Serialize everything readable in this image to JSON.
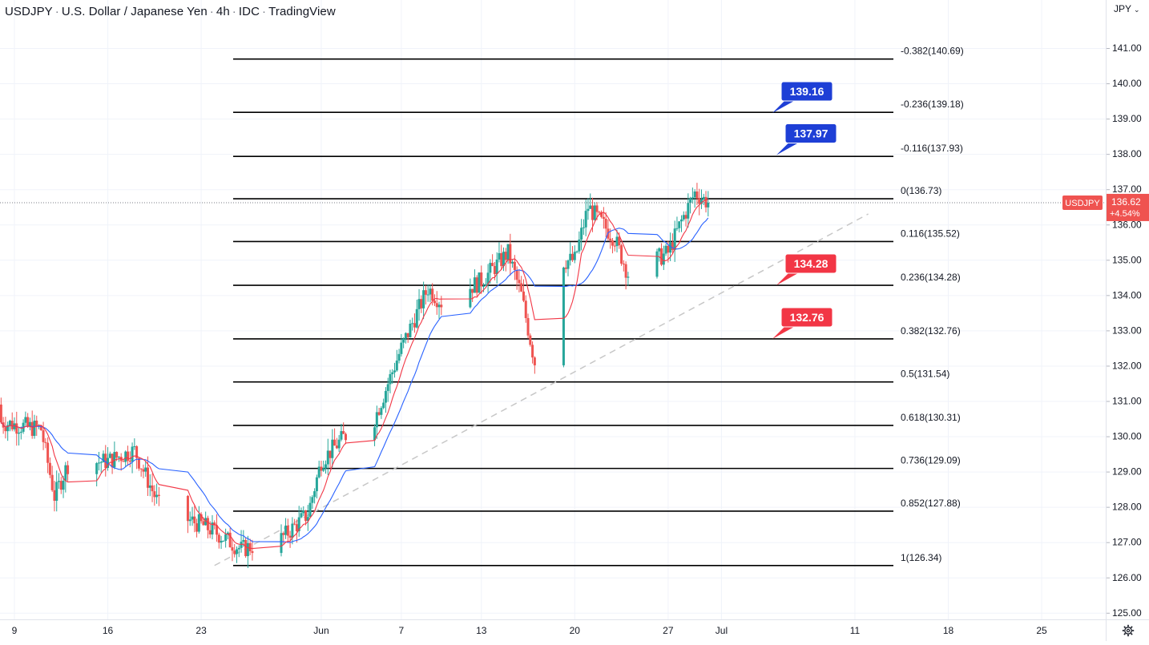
{
  "header": {
    "symbol": "USDJPY",
    "description": "U.S. Dollar / Japanese Yen",
    "interval": "4h",
    "source": "IDC",
    "platform": "TradingView",
    "currency_label": "JPY"
  },
  "price_axis": {
    "ticks": [
      "141.00",
      "140.00",
      "139.00",
      "138.00",
      "137.00",
      "136.00",
      "135.00",
      "134.00",
      "133.00",
      "132.00",
      "131.00",
      "130.00",
      "129.00",
      "128.00",
      "127.00",
      "126.00",
      "125.00"
    ],
    "symbol_tag": "USDJPY",
    "last_price": "136.62",
    "change_pct": "+4.54%"
  },
  "time_axis": {
    "labels": [
      "9",
      "16",
      "23",
      "Jun",
      "7",
      "13",
      "20",
      "27",
      "Jul",
      "11",
      "18",
      "25"
    ]
  },
  "colors": {
    "up": "#26a69a",
    "down": "#ef5350",
    "ma_fast": "#f23645",
    "ma_slow": "#2962ff",
    "level_line": "#000000",
    "trendline": "#c7c7c7",
    "target_blue": "#1e3fd6",
    "target_red": "#f23645"
  },
  "fib_levels": [
    {
      "ratio": -0.382,
      "price": 140.69,
      "label": "-0.382(140.69)"
    },
    {
      "ratio": -0.236,
      "price": 139.18,
      "label": "-0.236(139.18)"
    },
    {
      "ratio": -0.116,
      "price": 137.93,
      "label": "-0.116(137.93)"
    },
    {
      "ratio": 0,
      "price": 136.73,
      "label": "0(136.73)"
    },
    {
      "ratio": 0.116,
      "price": 135.52,
      "label": "0.116(135.52)"
    },
    {
      "ratio": 0.236,
      "price": 134.28,
      "label": "0.236(134.28)"
    },
    {
      "ratio": 0.382,
      "price": 132.76,
      "label": "0.382(132.76)"
    },
    {
      "ratio": 0.5,
      "price": 131.54,
      "label": "0.5(131.54)"
    },
    {
      "ratio": 0.618,
      "price": 130.31,
      "label": "0.618(130.31)"
    },
    {
      "ratio": 0.736,
      "price": 129.09,
      "label": "0.736(129.09)"
    },
    {
      "ratio": 0.852,
      "price": 127.88,
      "label": "0.852(127.88)"
    },
    {
      "ratio": 1,
      "price": 126.34,
      "label": "1(126.34)"
    }
  ],
  "targets": [
    {
      "label": "139.16",
      "price": 139.16,
      "color": "blue"
    },
    {
      "label": "137.97",
      "price": 137.97,
      "color": "blue"
    },
    {
      "label": "134.28",
      "price": 134.28,
      "color": "red"
    },
    {
      "label": "132.76",
      "price": 132.76,
      "color": "red"
    }
  ],
  "chart_data": {
    "type": "candlestick",
    "title": "USDJPY · U.S. Dollar / Japanese Yen · 4h · IDC · TradingView",
    "y_axis": "JPY",
    "ylim": [
      124.8,
      142.2
    ],
    "grid": true,
    "price_path": [
      [
        "May 6",
        130.9
      ],
      [
        "May 8",
        130.4
      ],
      [
        "May 11",
        130.2
      ],
      [
        "May 12",
        128.3
      ],
      [
        "May 13",
        129.2
      ],
      [
        "May 16",
        129.3
      ],
      [
        "May 18",
        129.6
      ],
      [
        "May 20",
        127.9
      ],
      [
        "May 23",
        127.5
      ],
      [
        "May 24",
        127.3
      ],
      [
        "May 26",
        126.8
      ],
      [
        "May 29",
        127.1
      ],
      [
        "May 31",
        127.8
      ],
      [
        "Jun 1",
        129.3
      ],
      [
        "Jun 3",
        130.1
      ],
      [
        "Jun 5",
        130.5
      ],
      [
        "Jun 7",
        132.5
      ],
      [
        "Jun 9",
        134.2
      ],
      [
        "Jun 10",
        133.8
      ],
      [
        "Jun 13",
        134.4
      ],
      [
        "Jun 15",
        135.2
      ],
      [
        "Jun 16",
        134.0
      ],
      [
        "Jun 17",
        132.1
      ],
      [
        "Jun 18",
        134.9
      ],
      [
        "Jun 20",
        135.0
      ],
      [
        "Jun 21",
        136.5
      ],
      [
        "Jun 23",
        135.6
      ],
      [
        "Jun 24",
        134.6
      ],
      [
        "Jun 27",
        135.2
      ],
      [
        "Jun 28",
        136.1
      ],
      [
        "Jun 29",
        136.9
      ],
      [
        "Jun 30",
        136.62
      ]
    ],
    "last_price": 136.62,
    "change_pct": 4.54,
    "trendline": {
      "from": [
        "May 24",
        126.34
      ],
      "to": [
        "Jul 12",
        136.3
      ]
    }
  }
}
